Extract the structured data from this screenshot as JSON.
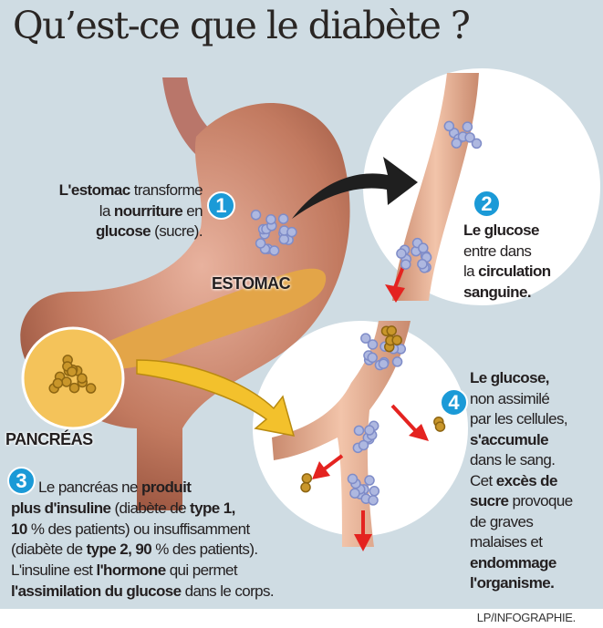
{
  "title": "Qu’est-ce que le diabète ?",
  "labels": {
    "stomach": "ESTOMAC",
    "pancreas": "PANCRÉAS"
  },
  "steps": [
    {
      "number": "1",
      "lines": [
        [
          {
            "t": "L'estomac",
            "b": true
          },
          {
            "t": " transforme"
          }
        ],
        [
          {
            "t": "la "
          },
          {
            "t": "nourriture",
            "b": true
          },
          {
            "t": " en"
          }
        ],
        [
          {
            "t": "glucose",
            "b": true
          },
          {
            "t": " (sucre)."
          }
        ]
      ]
    },
    {
      "number": "2",
      "lines": [
        [
          {
            "t": "Le glucose",
            "b": true
          }
        ],
        [
          {
            "t": "entre dans"
          }
        ],
        [
          {
            "t": "la "
          },
          {
            "t": "circulation",
            "b": true
          }
        ],
        [
          {
            "t": "sanguine.",
            "b": true
          }
        ]
      ]
    },
    {
      "number": "3",
      "lines": [
        [
          {
            "t": "Le pancréas ne "
          },
          {
            "t": "produit",
            "b": true
          }
        ],
        [
          {
            "t": "plus d'insuline",
            "b": true
          },
          {
            "t": " (diabète de "
          },
          {
            "t": "type 1,",
            "b": true
          }
        ],
        [
          {
            "t": "10",
            "b": true
          },
          {
            "t": " % des patients) ou insuffisamment"
          }
        ],
        [
          {
            "t": "(diabète de "
          },
          {
            "t": "type 2, 90",
            "b": true
          },
          {
            "t": " % des patients)."
          }
        ],
        [
          {
            "t": "L'insuline est "
          },
          {
            "t": "l'hormone",
            "b": true
          },
          {
            "t": " qui permet"
          }
        ],
        [
          {
            "t": "l'assimilation du glucose",
            "b": true
          },
          {
            "t": " dans le corps."
          }
        ]
      ]
    },
    {
      "number": "4",
      "lines": [
        [
          {
            "t": "Le glucose,",
            "b": true
          }
        ],
        [
          {
            "t": "non assimilé"
          }
        ],
        [
          {
            "t": "par les cellules,"
          }
        ],
        [
          {
            "t": "s'accumule",
            "b": true
          }
        ],
        [
          {
            "t": "dans le sang."
          }
        ],
        [
          {
            "t": "Cet "
          },
          {
            "t": "excès de",
            "b": true
          }
        ],
        [
          {
            "t": "sucre",
            "b": true
          },
          {
            "t": " provoque"
          }
        ],
        [
          {
            "t": "de graves"
          }
        ],
        [
          {
            "t": "malaises et"
          }
        ],
        [
          {
            "t": "endommage",
            "b": true
          }
        ],
        [
          {
            "t": "l'organisme.",
            "b": true
          }
        ]
      ]
    }
  ],
  "credit": "LP/INFOGRAPHIE.",
  "colors": {
    "background": "#cfdce3",
    "badge": "#1b9ad7",
    "stomach": "#b5694f",
    "pancreas": "#e3a548",
    "arrow_red": "#e42320",
    "glucose": "#aeb8e0",
    "insulin": "#c9962a"
  }
}
